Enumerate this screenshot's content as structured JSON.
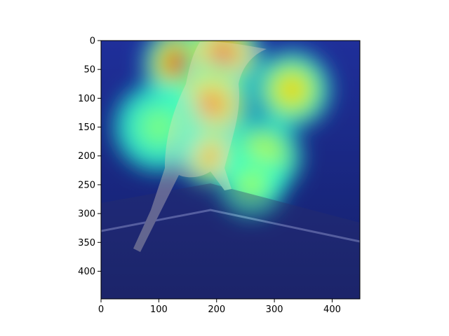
{
  "chart_data": {
    "type": "heatmap",
    "title": "",
    "xlabel": "",
    "ylabel": "",
    "xlim": [
      0,
      448
    ],
    "ylim": [
      448,
      0
    ],
    "x_ticks": [
      0,
      100,
      200,
      300,
      400
    ],
    "y_ticks": [
      0,
      50,
      100,
      150,
      200,
      250,
      300,
      350,
      400
    ],
    "grid": false,
    "legend": "none",
    "image_description": "Photograph of a small bird perched on a wooden board, overlaid with a jet-colormap attention heatmap",
    "colormap": "jet",
    "hotspots": [
      {
        "x": 140,
        "y": 40,
        "r": 70,
        "intensity": 1.0
      },
      {
        "x": 210,
        "y": 25,
        "r": 70,
        "intensity": 0.95
      },
      {
        "x": 190,
        "y": 110,
        "r": 75,
        "intensity": 0.85
      },
      {
        "x": 330,
        "y": 85,
        "r": 70,
        "intensity": 0.7
      },
      {
        "x": 190,
        "y": 200,
        "r": 55,
        "intensity": 0.8
      },
      {
        "x": 280,
        "y": 200,
        "r": 70,
        "intensity": 0.6
      },
      {
        "x": 100,
        "y": 150,
        "r": 80,
        "intensity": 0.45
      },
      {
        "x": 260,
        "y": 250,
        "r": 60,
        "intensity": 0.5
      }
    ]
  }
}
